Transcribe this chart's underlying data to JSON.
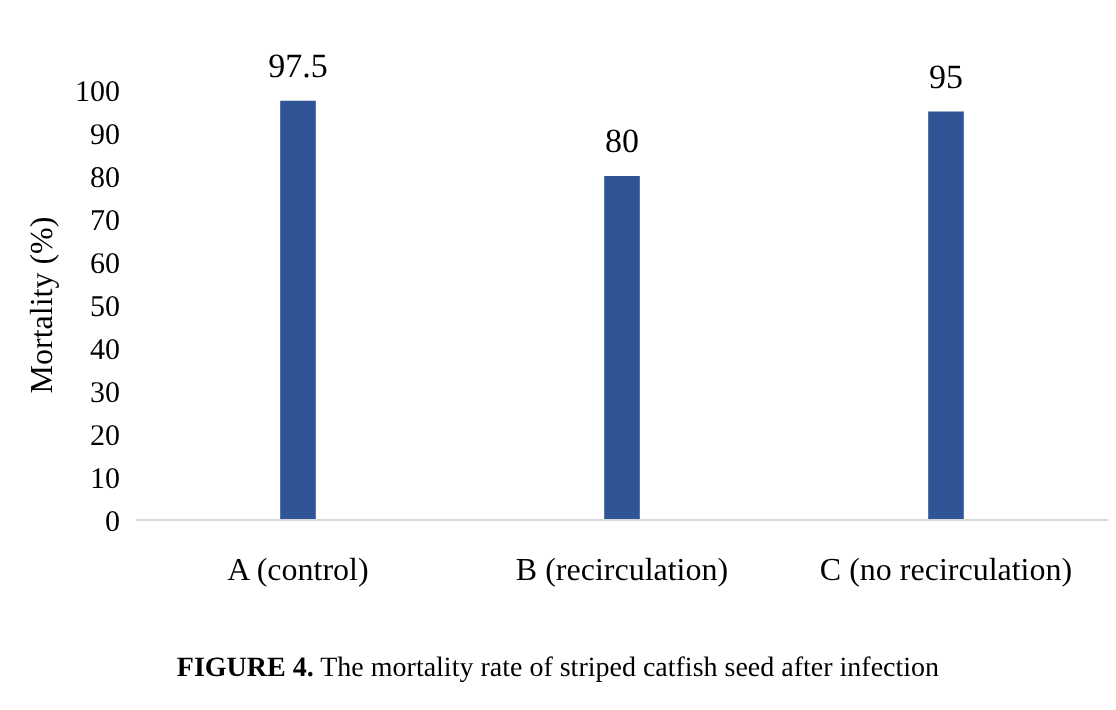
{
  "chart_data": {
    "type": "bar",
    "title": "FIGURE 4. The mortality rate of striped catfish seed after infection",
    "ylabel": "Mortality (%)",
    "categories": [
      "A (control)",
      "B (recirculation)",
      "C (no recirculation)"
    ],
    "values": [
      97.5,
      80,
      95
    ],
    "color": "#2f5597",
    "ylim": [
      0,
      100
    ],
    "yticks": [
      0,
      10,
      20,
      30,
      40,
      50,
      60,
      70,
      80,
      90,
      100
    ],
    "data_labels": true
  }
}
